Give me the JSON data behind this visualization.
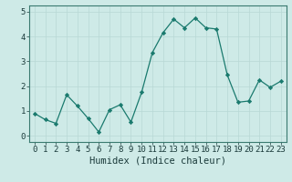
{
  "x": [
    0,
    1,
    2,
    3,
    4,
    5,
    6,
    7,
    8,
    9,
    10,
    11,
    12,
    13,
    14,
    15,
    16,
    17,
    18,
    19,
    20,
    21,
    22,
    23
  ],
  "y": [
    0.9,
    0.65,
    0.5,
    1.65,
    1.2,
    0.7,
    0.15,
    1.05,
    1.25,
    0.55,
    1.75,
    3.35,
    4.15,
    4.7,
    4.35,
    4.75,
    4.35,
    4.3,
    2.45,
    1.35,
    1.4,
    2.25,
    1.95,
    2.2
  ],
  "xlim": [
    -0.5,
    23.5
  ],
  "ylim": [
    -0.25,
    5.25
  ],
  "yticks": [
    0,
    1,
    2,
    3,
    4,
    5
  ],
  "xticks": [
    0,
    1,
    2,
    3,
    4,
    5,
    6,
    7,
    8,
    9,
    10,
    11,
    12,
    13,
    14,
    15,
    16,
    17,
    18,
    19,
    20,
    21,
    22,
    23
  ],
  "xlabel": "Humidex (Indice chaleur)",
  "line_color": "#1a7a6e",
  "marker_color": "#1a7a6e",
  "bg_color": "#ceeae7",
  "grid_color": "#b8d8d5",
  "axis_color": "#3a7a70",
  "tick_color": "#1a3a3a",
  "xlabel_fontsize": 7.5,
  "tick_fontsize": 6.5
}
